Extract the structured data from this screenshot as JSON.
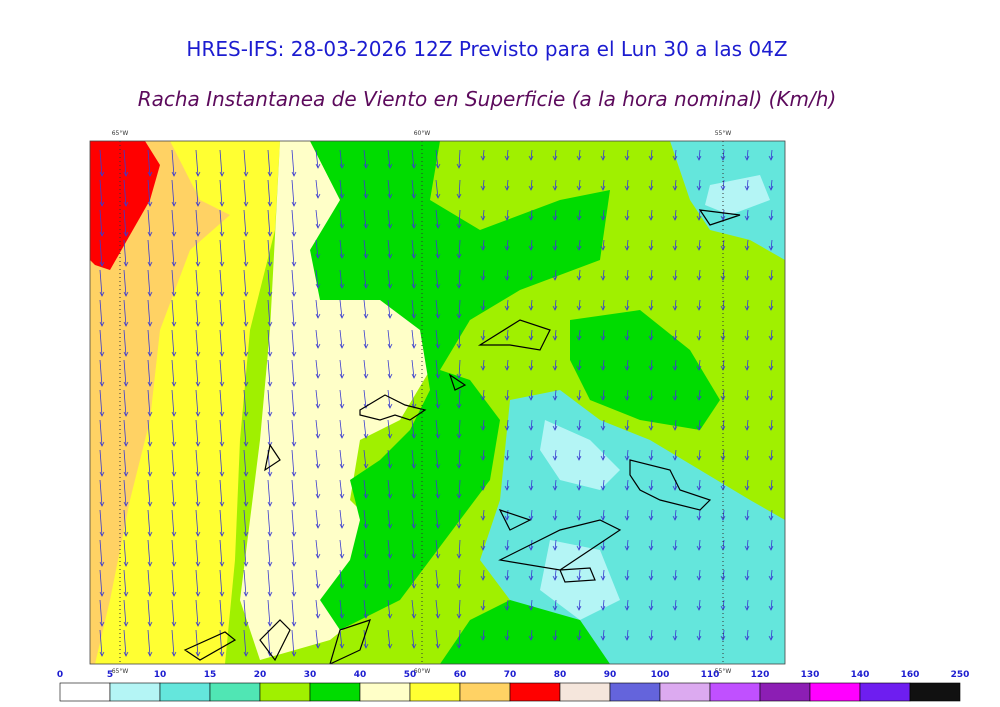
{
  "header": {
    "title": "HRES-IFS: 28-03-2026 12Z Previsto para el Lun 30 a las 04Z",
    "subtitle": "Racha Instantanea de Viento en Superficie (a la hora nominal) (Km/h)"
  },
  "map": {
    "longitude_labels": [
      "65°W",
      "60°W",
      "55°W"
    ]
  },
  "colorbar": {
    "labels": [
      "0",
      "5",
      "10",
      "15",
      "20",
      "30",
      "40",
      "50",
      "60",
      "70",
      "80",
      "90",
      "100",
      "110",
      "120",
      "130",
      "140",
      "160",
      "250"
    ],
    "colors": [
      "#ffffff",
      "#b4f5f5",
      "#64e6dc",
      "#50e6b4",
      "#a0f000",
      "#00dc00",
      "#ffffc8",
      "#ffff32",
      "#ffd264",
      "#ff0000",
      "#f5e6dc",
      "#6464dc",
      "#dcaaf0",
      "#c050ff",
      "#8c1eb4",
      "#ff00ff",
      "#6e1ef0",
      "#111111"
    ]
  }
}
